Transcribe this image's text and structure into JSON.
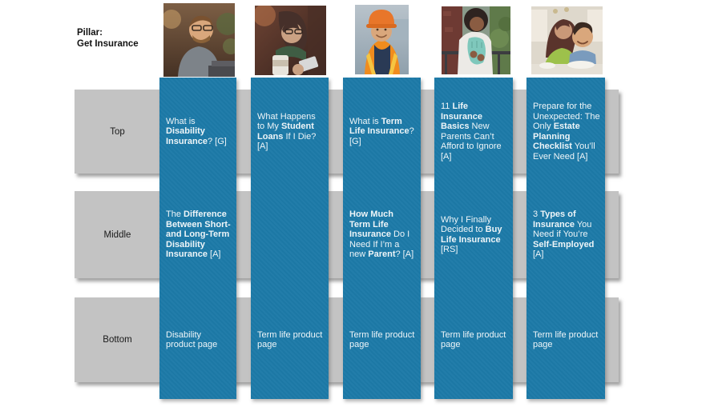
{
  "pillar": {
    "line1": "Pillar:",
    "line2": "Get Insurance"
  },
  "rows": [
    {
      "label": "Top"
    },
    {
      "label": "Middle"
    },
    {
      "label": "Bottom"
    }
  ],
  "columns": [
    {
      "photo": "man-with-glasses-working-at-laptop",
      "cells": {
        "top": [
          {
            "t": "What  is ",
            "b": false
          },
          {
            "t": "Disability Insurance",
            "b": true
          },
          {
            "t": "? [G]",
            "b": false
          }
        ],
        "middle": [
          {
            "t": "The ",
            "b": false
          },
          {
            "t": "Difference Between Short- and Long-Term Disability Insurance",
            "b": true
          },
          {
            "t": " [A]",
            "b": false
          }
        ],
        "bottom": [
          {
            "t": "Disability product page",
            "b": false
          }
        ]
      }
    },
    {
      "photo": "woman-with-coffee-looking-at-phone",
      "cells": {
        "top": [
          {
            "t": "What Happens to My ",
            "b": false
          },
          {
            "t": "Student Loans",
            "b": true
          },
          {
            "t": " If I Die? [A]",
            "b": false
          }
        ],
        "middle": [],
        "bottom": [
          {
            "t": "Term life product page",
            "b": false
          }
        ]
      }
    },
    {
      "photo": "construction-worker-in-orange-hard-hat",
      "cells": {
        "top": [
          {
            "t": "What is ",
            "b": false
          },
          {
            "t": "Term Life Insurance",
            "b": true
          },
          {
            "t": "? [G]",
            "b": false
          }
        ],
        "middle": [
          {
            "t": "How Much Term Life Insurance",
            "b": true
          },
          {
            "t": " Do I Need If  I’m a new ",
            "b": false
          },
          {
            "t": "Parent",
            "b": true
          },
          {
            "t": "? [A]",
            "b": false
          }
        ],
        "bottom": [
          {
            "t": "Term life product page",
            "b": false
          }
        ]
      }
    },
    {
      "photo": "pregnant-woman-standing-outdoors",
      "cells": {
        "top": [
          {
            "t": "11 ",
            "b": false
          },
          {
            "t": "Life Insurance Basics",
            "b": true
          },
          {
            "t": " New Parents Can’t Afford to Ignore [A]",
            "b": false
          }
        ],
        "middle": [
          {
            "t": "Why I Finally Decided to ",
            "b": false
          },
          {
            "t": "Buy Life Insurance",
            "b": true
          },
          {
            "t": " [RS]",
            "b": false
          }
        ],
        "bottom": [
          {
            "t": "Term life product page",
            "b": false
          }
        ]
      }
    },
    {
      "photo": "mother-and-child-at-table",
      "cells": {
        "top": [
          {
            "t": "Prepare for the Unexpected: The Only ",
            "b": false
          },
          {
            "t": "Estate Planning Checklist",
            "b": true
          },
          {
            "t": " You’ll Ever Need [A]",
            "b": false
          }
        ],
        "middle": [
          {
            "t": "3 ",
            "b": false
          },
          {
            "t": "Types of Insurance",
            "b": true
          },
          {
            "t": " You Need if You’re ",
            "b": false
          },
          {
            "t": "Self-Employed",
            "b": true
          },
          {
            "t": " [A]",
            "b": false
          }
        ],
        "bottom": [
          {
            "t": "Term life product page",
            "b": false
          }
        ]
      }
    }
  ],
  "colors": {
    "column_blue": "#1d7aa8",
    "band_gray": "#c3c3c3",
    "cell_text": "#eef5f8",
    "label_text": "#1a1a1a"
  }
}
